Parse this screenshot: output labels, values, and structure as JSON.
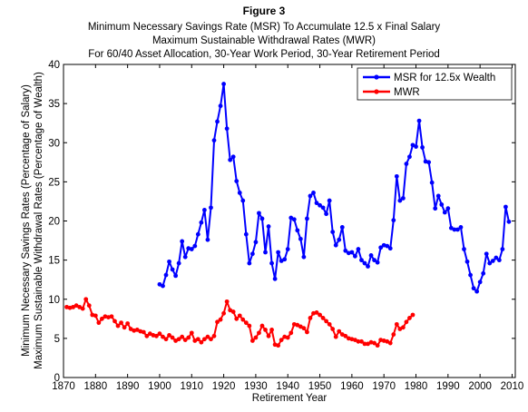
{
  "chart_data": {
    "type": "line",
    "title": "Figure 3",
    "subtitle": [
      "Minimum Necessary Savings Rate (MSR) To Accumulate 12.5 x Final Salary",
      "Maximum Sustainable Withdrawal Rates (MWR)",
      "For 60/40 Asset Allocation, 30-Year Work Period, 30-Year Retirement Period"
    ],
    "xlabel": "Retirement Year",
    "ylabel": [
      "Minimum Necessary Savings Rates (Percentage of Salary)",
      "Maximum Sustainable Withdrawal Rates (Percentage of Wealth)"
    ],
    "xlim": [
      1870,
      2011
    ],
    "ylim": [
      0,
      40
    ],
    "xticks": [
      1870,
      1880,
      1890,
      1900,
      1910,
      1920,
      1930,
      1940,
      1950,
      1960,
      1970,
      1980,
      1990,
      2000,
      2010
    ],
    "yticks": [
      0,
      5,
      10,
      15,
      20,
      25,
      30,
      35,
      40
    ],
    "grid": false,
    "legend": "top-right",
    "series": [
      {
        "name": "MSR for 12.5x Wealth",
        "color": "#0000ff",
        "x_start": 1900,
        "values": [
          11.9,
          11.7,
          13.1,
          14.8,
          13.8,
          13.0,
          14.6,
          17.4,
          15.4,
          16.5,
          16.4,
          16.8,
          18.3,
          19.8,
          21.4,
          17.6,
          21.7,
          30.3,
          32.7,
          34.7,
          37.5,
          31.8,
          27.8,
          28.2,
          25.1,
          23.6,
          22.6,
          18.3,
          14.6,
          15.8,
          17.3,
          21.0,
          20.3,
          16.0,
          19.3,
          14.6,
          12.6,
          16.0,
          14.9,
          15.1,
          16.4,
          20.4,
          20.2,
          18.8,
          17.7,
          15.4,
          20.3,
          23.2,
          23.6,
          22.3,
          22.0,
          21.7,
          20.9,
          22.6,
          18.6,
          16.9,
          17.6,
          19.2,
          16.2,
          15.9,
          16.0,
          15.5,
          16.4,
          15.0,
          14.6,
          14.2,
          15.6,
          15.0,
          14.7,
          16.6,
          16.9,
          16.8,
          16.5,
          20.1,
          25.7,
          22.6,
          22.9,
          27.3,
          28.2,
          29.7,
          29.5,
          32.8,
          29.4,
          27.6,
          27.5,
          24.9,
          21.6,
          23.2,
          22.1,
          21.1,
          21.6,
          19.1,
          18.9,
          18.9,
          19.2,
          16.4,
          14.8,
          13.1,
          11.4,
          11.0,
          12.2,
          13.3,
          15.8,
          14.6,
          14.9,
          15.3,
          15.0,
          16.4,
          21.8,
          19.9
        ]
      },
      {
        "name": "MWR",
        "color": "#ff0000",
        "x_start": 1871,
        "values": [
          9.0,
          8.9,
          9.0,
          9.2,
          9.0,
          8.8,
          10.0,
          9.2,
          8.0,
          7.9,
          7.0,
          7.5,
          7.8,
          7.7,
          7.8,
          7.2,
          6.6,
          7.0,
          6.4,
          6.9,
          6.2,
          6.0,
          6.1,
          5.9,
          5.8,
          5.3,
          5.6,
          5.4,
          5.3,
          5.6,
          5.2,
          4.9,
          5.4,
          5.1,
          4.7,
          4.9,
          5.2,
          4.8,
          5.1,
          5.7,
          4.7,
          4.9,
          4.5,
          4.9,
          5.2,
          4.9,
          5.3,
          7.1,
          7.4,
          8.2,
          9.7,
          8.6,
          8.4,
          7.5,
          7.9,
          7.4,
          7.0,
          6.6,
          4.7,
          5.1,
          5.7,
          6.6,
          6.1,
          5.3,
          6.1,
          4.2,
          4.1,
          4.8,
          5.2,
          5.1,
          5.7,
          6.8,
          6.7,
          6.5,
          6.3,
          5.8,
          7.6,
          8.2,
          8.3,
          8.0,
          7.6,
          7.2,
          6.8,
          6.2,
          5.2,
          5.9,
          5.5,
          5.3,
          5.0,
          4.9,
          4.8,
          4.6,
          4.6,
          4.3,
          4.3,
          4.5,
          4.4,
          4.1,
          4.8,
          4.7,
          4.6,
          4.4,
          5.5,
          6.8,
          6.2,
          6.4,
          7.1,
          7.6,
          8.0
        ]
      }
    ]
  }
}
